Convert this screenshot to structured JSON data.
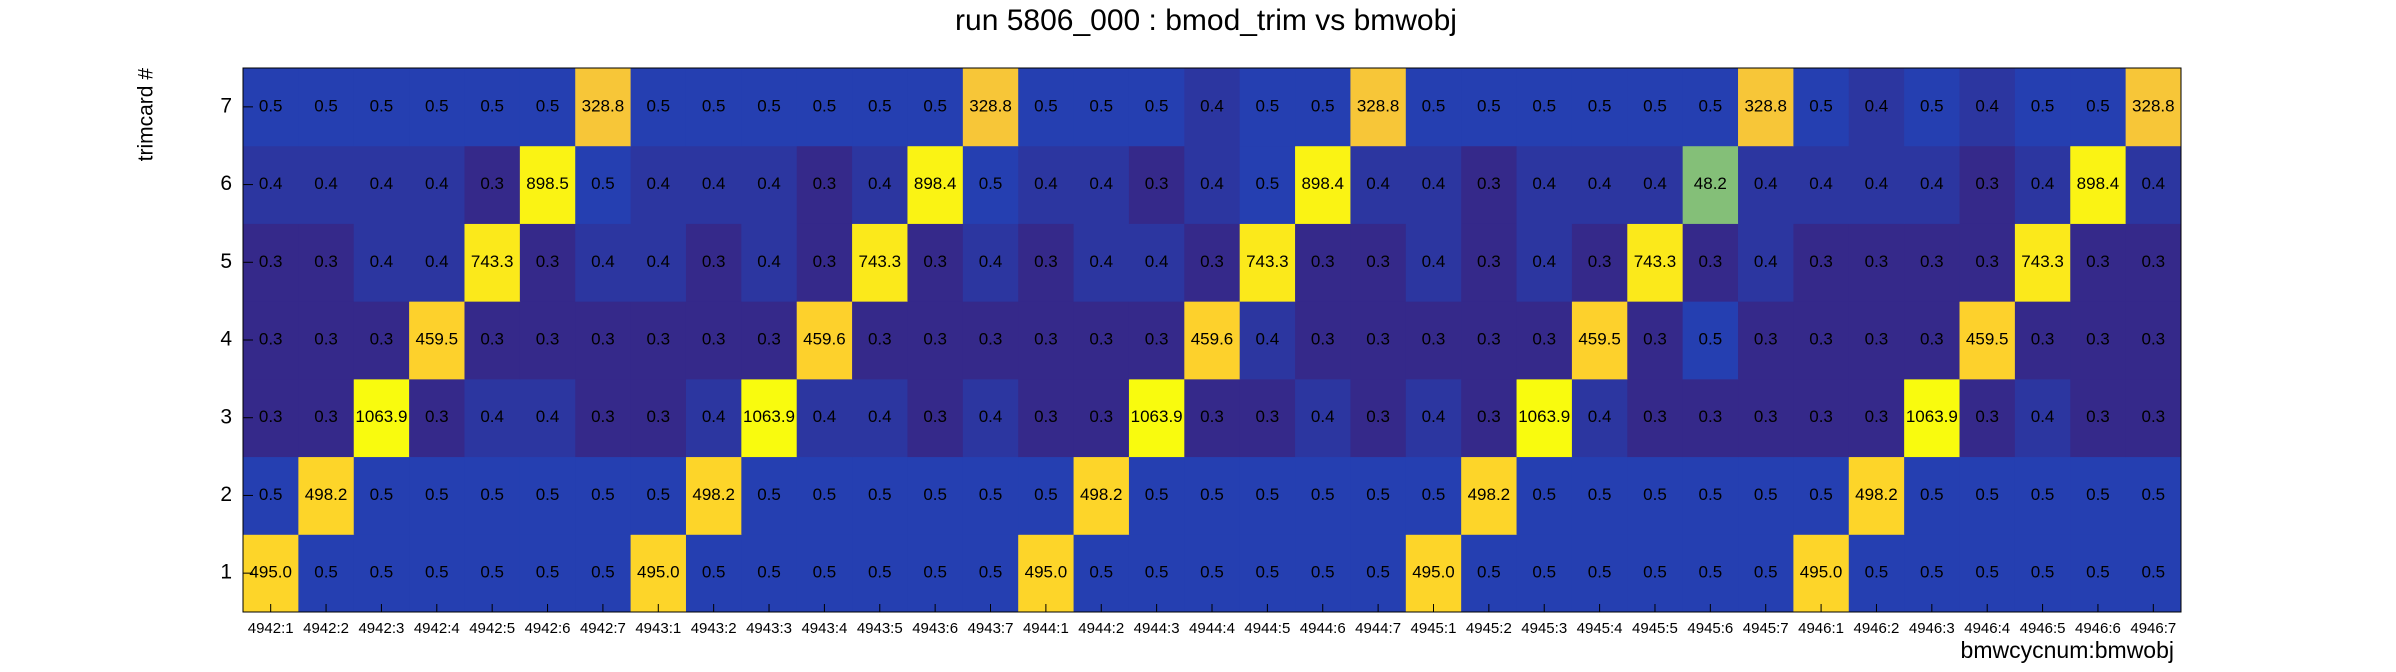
{
  "chart_data": {
    "type": "heatmap",
    "title": "run 5806_000 : bmod_trim vs bmwobj",
    "x_label": "bmwcycnum:bmwobj",
    "y_label": "trimcard #",
    "categories": [
      "4942:1",
      "4942:2",
      "4942:3",
      "4942:4",
      "4942:5",
      "4942:6",
      "4942:7",
      "4943:1",
      "4943:2",
      "4943:3",
      "4943:4",
      "4943:5",
      "4943:6",
      "4943:7",
      "4944:1",
      "4944:2",
      "4944:3",
      "4944:4",
      "4944:5",
      "4944:6",
      "4944:7",
      "4945:1",
      "4945:2",
      "4945:3",
      "4945:4",
      "4945:5",
      "4945:6",
      "4945:7",
      "4946:1",
      "4946:2",
      "4946:3",
      "4946:4",
      "4946:5",
      "4946:6",
      "4946:7"
    ],
    "y_categories": [
      1,
      2,
      3,
      4,
      5,
      6,
      7
    ],
    "values": [
      [
        495.0,
        0.5,
        0.5,
        0.5,
        0.5,
        0.5,
        0.5,
        495.0,
        0.5,
        0.5,
        0.5,
        0.5,
        0.5,
        0.5,
        495.0,
        0.5,
        0.5,
        0.5,
        0.5,
        0.5,
        0.5,
        495.0,
        0.5,
        0.5,
        0.5,
        0.5,
        0.5,
        0.5,
        495.0,
        0.5,
        0.5,
        0.5,
        0.5,
        0.5,
        0.5
      ],
      [
        0.5,
        498.2,
        0.5,
        0.5,
        0.5,
        0.5,
        0.5,
        0.5,
        498.2,
        0.5,
        0.5,
        0.5,
        0.5,
        0.5,
        0.5,
        498.2,
        0.5,
        0.5,
        0.5,
        0.5,
        0.5,
        0.5,
        498.2,
        0.5,
        0.5,
        0.5,
        0.5,
        0.5,
        0.5,
        498.2,
        0.5,
        0.5,
        0.5,
        0.5,
        0.5
      ],
      [
        0.3,
        0.3,
        1063.9,
        0.3,
        0.4,
        0.4,
        0.3,
        0.3,
        0.4,
        1063.9,
        0.4,
        0.4,
        0.3,
        0.4,
        0.3,
        0.3,
        1063.9,
        0.3,
        0.3,
        0.4,
        0.3,
        0.4,
        0.3,
        1063.9,
        0.4,
        0.3,
        0.3,
        0.3,
        0.3,
        0.3,
        1063.9,
        0.3,
        0.4,
        0.3,
        0.3
      ],
      [
        0.3,
        0.3,
        0.3,
        459.5,
        0.3,
        0.3,
        0.3,
        0.3,
        0.3,
        0.3,
        459.6,
        0.3,
        0.3,
        0.3,
        0.3,
        0.3,
        0.3,
        459.6,
        0.4,
        0.3,
        0.3,
        0.3,
        0.3,
        0.3,
        459.5,
        0.3,
        0.5,
        0.3,
        0.3,
        0.3,
        0.3,
        459.5,
        0.3,
        0.3,
        0.3
      ],
      [
        0.3,
        0.3,
        0.4,
        0.4,
        743.3,
        0.3,
        0.4,
        0.4,
        0.3,
        0.4,
        0.3,
        743.3,
        0.3,
        0.4,
        0.3,
        0.4,
        0.4,
        0.3,
        743.3,
        0.3,
        0.3,
        0.4,
        0.3,
        0.4,
        0.3,
        743.3,
        0.3,
        0.4,
        0.3,
        0.3,
        0.3,
        0.3,
        743.3,
        0.3,
        0.3
      ],
      [
        0.4,
        0.4,
        0.4,
        0.4,
        0.3,
        898.5,
        0.5,
        0.4,
        0.4,
        0.4,
        0.3,
        0.4,
        898.4,
        0.5,
        0.4,
        0.4,
        0.3,
        0.4,
        0.5,
        898.4,
        0.4,
        0.4,
        0.3,
        0.4,
        0.4,
        0.4,
        48.2,
        0.4,
        0.4,
        0.4,
        0.4,
        0.3,
        0.4,
        898.4,
        0.4
      ],
      [
        0.5,
        0.5,
        0.5,
        0.5,
        0.5,
        0.5,
        328.8,
        0.5,
        0.5,
        0.5,
        0.5,
        0.5,
        0.5,
        328.8,
        0.5,
        0.5,
        0.5,
        0.4,
        0.5,
        0.5,
        328.8,
        0.5,
        0.5,
        0.5,
        0.5,
        0.5,
        0.5,
        328.8,
        0.5,
        0.4,
        0.5,
        0.4,
        0.5,
        0.5,
        328.8
      ]
    ],
    "value_labels": [
      [
        "495.0",
        "0.5",
        "0.5",
        "0.5",
        "0.5",
        "0.5",
        "0.5",
        "495.0",
        "0.5",
        "0.5",
        "0.5",
        "0.5",
        "0.5",
        "0.5",
        "495.0",
        "0.5",
        "0.5",
        "0.5",
        "0.5",
        "0.5",
        "0.5",
        "495.0",
        "0.5",
        "0.5",
        "0.5",
        "0.5",
        "0.5",
        "0.5",
        "495.0",
        "0.5",
        "0.5",
        "0.5",
        "0.5",
        "0.5",
        "0.5"
      ],
      [
        "0.5",
        "498.2",
        "0.5",
        "0.5",
        "0.5",
        "0.5",
        "0.5",
        "0.5",
        "498.2",
        "0.5",
        "0.5",
        "0.5",
        "0.5",
        "0.5",
        "0.5",
        "498.2",
        "0.5",
        "0.5",
        "0.5",
        "0.5",
        "0.5",
        "0.5",
        "498.2",
        "0.5",
        "0.5",
        "0.5",
        "0.5",
        "0.5",
        "0.5",
        "498.2",
        "0.5",
        "0.5",
        "0.5",
        "0.5",
        "0.5"
      ],
      [
        "0.3",
        "0.3",
        "1063.9",
        "0.3",
        "0.4",
        "0.4",
        "0.3",
        "0.3",
        "0.4",
        "1063.9",
        "0.4",
        "0.4",
        "0.3",
        "0.4",
        "0.3",
        "0.3",
        "1063.9",
        "0.3",
        "0.3",
        "0.4",
        "0.3",
        "0.4",
        "0.3",
        "1063.9",
        "0.4",
        "0.3",
        "0.3",
        "0.3",
        "0.3",
        "0.3",
        "1063.9",
        "0.3",
        "0.4",
        "0.3",
        "0.3"
      ],
      [
        "0.3",
        "0.3",
        "0.3",
        "459.5",
        "0.3",
        "0.3",
        "0.3",
        "0.3",
        "0.3",
        "0.3",
        "459.6",
        "0.3",
        "0.3",
        "0.3",
        "0.3",
        "0.3",
        "0.3",
        "459.6",
        "0.4",
        "0.3",
        "0.3",
        "0.3",
        "0.3",
        "0.3",
        "459.5",
        "0.3",
        "0.5",
        "0.3",
        "0.3",
        "0.3",
        "0.3",
        "459.5",
        "0.3",
        "0.3",
        "0.3"
      ],
      [
        "0.3",
        "0.3",
        "0.4",
        "0.4",
        "743.3",
        "0.3",
        "0.4",
        "0.4",
        "0.3",
        "0.4",
        "0.3",
        "743.3",
        "0.3",
        "0.4",
        "0.3",
        "0.4",
        "0.4",
        "0.3",
        "743.3",
        "0.3",
        "0.3",
        "0.4",
        "0.3",
        "0.4",
        "0.3",
        "743.3",
        "0.3",
        "0.4",
        "0.3",
        "0.3",
        "0.3",
        "0.3",
        "743.3",
        "0.3",
        "0.3"
      ],
      [
        "0.4",
        "0.4",
        "0.4",
        "0.4",
        "0.3",
        "898.5",
        "0.5",
        "0.4",
        "0.4",
        "0.4",
        "0.3",
        "0.4",
        "898.4",
        "0.5",
        "0.4",
        "0.4",
        "0.3",
        "0.4",
        "0.5",
        "898.4",
        "0.4",
        "0.4",
        "0.3",
        "0.4",
        "0.4",
        "0.4",
        "48.2",
        "0.4",
        "0.4",
        "0.4",
        "0.4",
        "0.3",
        "0.4",
        "898.4",
        "0.4"
      ],
      [
        "0.5",
        "0.5",
        "0.5",
        "0.5",
        "0.5",
        "0.5",
        "328.8",
        "0.5",
        "0.5",
        "0.5",
        "0.5",
        "0.5",
        "0.5",
        "328.8",
        "0.5",
        "0.5",
        "0.5",
        "0.4",
        "0.5",
        "0.5",
        "328.8",
        "0.5",
        "0.5",
        "0.5",
        "0.5",
        "0.5",
        "0.5",
        "328.8",
        "0.5",
        "0.4",
        "0.5",
        "0.4",
        "0.5",
        "0.5",
        "328.8"
      ]
    ],
    "log_z": true,
    "palette": [
      "#35298a",
      "#1456d8",
      "#1481d6",
      "#06a4ca",
      "#2eb7a4",
      "#87bf77",
      "#d1bb59",
      "#fec832",
      "#f9fb0e"
    ]
  }
}
